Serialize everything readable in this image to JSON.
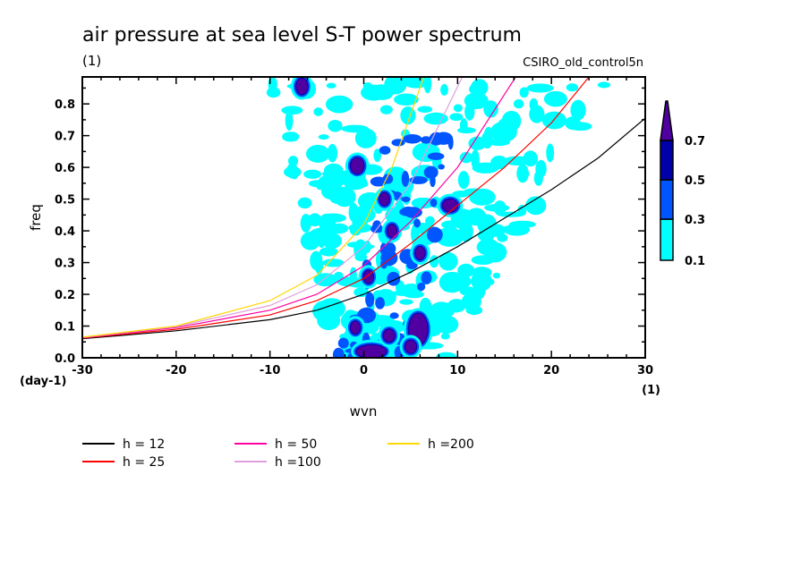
{
  "chart_data": {
    "type": "heatmap",
    "title": "air pressure at sea level S-T power spectrum",
    "subtitle": "(1)",
    "run_label": "CSIRO_old_control5n",
    "xlabel": "wvn",
    "xunit": "(1)",
    "ylabel": "freq",
    "yunit": "(day-1)",
    "xlim": [
      -30,
      30
    ],
    "ylim": [
      0,
      0.885
    ],
    "x_ticks": [
      -30,
      -20,
      -10,
      0,
      10,
      20,
      30
    ],
    "x_tick_labels": [
      "-30",
      "-20",
      "-10",
      "0",
      "10",
      "20",
      "30"
    ],
    "y_ticks": [
      0.0,
      0.1,
      0.2,
      0.3,
      0.4,
      0.5,
      0.6,
      0.7,
      0.8
    ],
    "y_tick_labels": [
      "0.0",
      "0.1",
      "0.2",
      "0.3",
      "0.4",
      "0.5",
      "0.6",
      "0.7",
      "0.8"
    ],
    "colorbar": {
      "levels": [
        0.1,
        0.3,
        0.5,
        0.7
      ],
      "level_labels": [
        "0.1",
        "0.3",
        "0.5",
        "0.7"
      ],
      "colors": [
        "#00ffff",
        "#0055ff",
        "#0000a8",
        "#5000a0"
      ],
      "extend": "max"
    },
    "contour_blobs": [
      {
        "x": 5.8,
        "y": 0.09,
        "rx": 1.0,
        "ry": 0.05,
        "level": 3
      },
      {
        "x": 0.8,
        "y": 0.02,
        "rx": 1.6,
        "ry": 0.02,
        "level": 3
      },
      {
        "x": 5.0,
        "y": 0.035,
        "rx": 0.6,
        "ry": 0.02,
        "level": 3
      },
      {
        "x": 2.7,
        "y": 0.07,
        "rx": 0.6,
        "ry": 0.02,
        "level": 3
      },
      {
        "x": -0.9,
        "y": 0.095,
        "rx": 0.5,
        "ry": 0.02,
        "level": 3
      },
      {
        "x": -0.7,
        "y": 0.605,
        "rx": 0.7,
        "ry": 0.025,
        "level": 3
      },
      {
        "x": -6.6,
        "y": 0.855,
        "rx": 0.6,
        "ry": 0.025,
        "level": 3
      },
      {
        "x": 0.5,
        "y": 0.255,
        "rx": 0.5,
        "ry": 0.02,
        "level": 3
      },
      {
        "x": 3.0,
        "y": 0.4,
        "rx": 0.5,
        "ry": 0.02,
        "level": 3
      },
      {
        "x": 6.0,
        "y": 0.33,
        "rx": 0.5,
        "ry": 0.02,
        "level": 3
      },
      {
        "x": 2.2,
        "y": 0.5,
        "rx": 0.5,
        "ry": 0.02,
        "level": 3
      },
      {
        "x": 9.2,
        "y": 0.48,
        "rx": 0.8,
        "ry": 0.02,
        "level": 3
      }
    ],
    "series": [
      {
        "name": "h = 12",
        "color": "#000000",
        "x": [
          -30,
          -20,
          -10,
          -5,
          0,
          5,
          10,
          15,
          20,
          25,
          30
        ],
        "y": [
          0.06,
          0.085,
          0.12,
          0.15,
          0.2,
          0.27,
          0.35,
          0.44,
          0.53,
          0.63,
          0.755
        ]
      },
      {
        "name": "h = 25",
        "color": "#ff0000",
        "x": [
          -30,
          -20,
          -10,
          -5,
          0,
          5,
          10,
          15,
          20,
          24
        ],
        "y": [
          0.062,
          0.09,
          0.135,
          0.18,
          0.25,
          0.36,
          0.48,
          0.6,
          0.74,
          0.885
        ]
      },
      {
        "name": "h = 50",
        "color": "#ff00a0",
        "x": [
          -30,
          -20,
          -10,
          -5,
          0,
          5,
          10,
          16.2
        ],
        "y": [
          0.063,
          0.095,
          0.15,
          0.2,
          0.29,
          0.43,
          0.6,
          0.885
        ]
      },
      {
        "name": "h =100",
        "color": "#dda0dd",
        "x": [
          -30,
          -20,
          -10,
          -5,
          0,
          5,
          10.5
        ],
        "y": [
          0.064,
          0.098,
          0.165,
          0.23,
          0.35,
          0.55,
          0.885
        ]
      },
      {
        "name": "h =200",
        "color": "#ffd700",
        "x": [
          -30,
          -20,
          -10,
          -5,
          0,
          3,
          6.4
        ],
        "y": [
          0.065,
          0.1,
          0.18,
          0.26,
          0.42,
          0.6,
          0.885
        ]
      }
    ],
    "legend": {
      "placement": "bottom",
      "entries": [
        {
          "label": "h = 12",
          "color": "#000000"
        },
        {
          "label": "h = 25",
          "color": "#ff0000"
        },
        {
          "label": "h = 50",
          "color": "#ff00a0"
        },
        {
          "label": "h =100",
          "color": "#dda0dd"
        },
        {
          "label": "h =200",
          "color": "#ffd700"
        }
      ]
    }
  }
}
